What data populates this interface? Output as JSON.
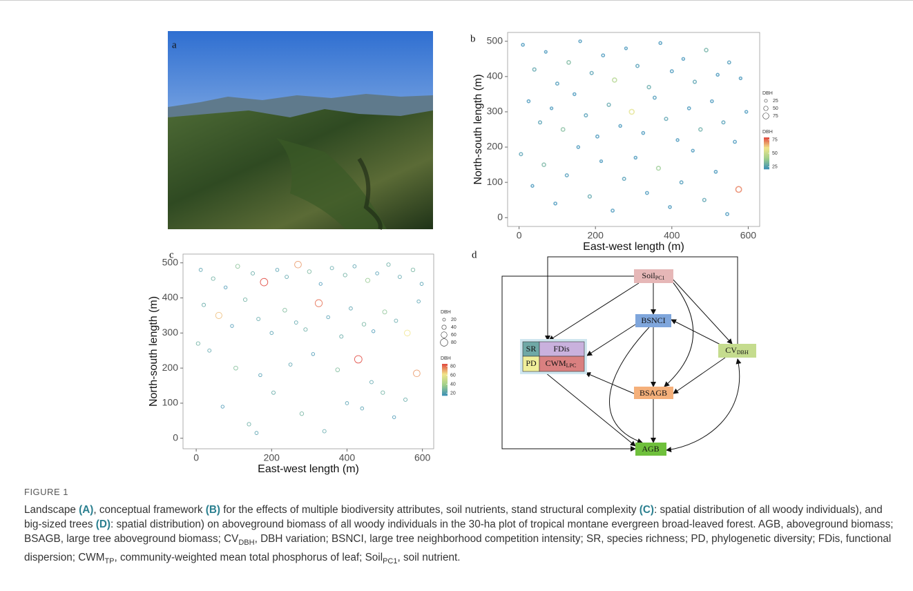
{
  "panel_labels": [
    "a",
    "b",
    "c",
    "d"
  ],
  "chart_data": [
    {
      "type": "scatter",
      "xlabel": "East-west length (m)",
      "ylabel": "North-south length (m)",
      "xlim": [
        -30,
        630
      ],
      "ylim": [
        -25,
        525
      ],
      "xticks": [
        0,
        200,
        400,
        600
      ],
      "yticks": [
        0,
        100,
        200,
        300,
        400,
        500
      ],
      "size_legend_title": "DBH",
      "size_ticks": [
        25,
        50,
        75
      ],
      "color_legend_title": "DBH",
      "color_ticks": [
        25,
        50,
        75
      ],
      "colorscale": [
        "#3a8fb7",
        "#9fcf8a",
        "#f1e58a",
        "#e0453c"
      ],
      "x": [
        10,
        40,
        70,
        100,
        130,
        160,
        190,
        220,
        250,
        280,
        310,
        340,
        370,
        400,
        430,
        460,
        490,
        520,
        550,
        580,
        25,
        55,
        85,
        115,
        145,
        175,
        205,
        235,
        265,
        295,
        325,
        355,
        385,
        415,
        445,
        475,
        505,
        535,
        565,
        595,
        5,
        35,
        65,
        95,
        125,
        155,
        185,
        215,
        245,
        275,
        305,
        335,
        365,
        395,
        425,
        455,
        485,
        515,
        545,
        575
      ],
      "y": [
        490,
        420,
        470,
        380,
        440,
        500,
        410,
        460,
        390,
        480,
        430,
        370,
        495,
        415,
        450,
        385,
        475,
        405,
        440,
        395,
        330,
        270,
        310,
        250,
        350,
        290,
        230,
        320,
        260,
        300,
        240,
        340,
        280,
        220,
        310,
        250,
        330,
        270,
        215,
        300,
        180,
        90,
        150,
        40,
        120,
        200,
        60,
        160,
        20,
        110,
        170,
        70,
        140,
        30,
        100,
        190,
        50,
        130,
        10,
        80
      ],
      "size": [
        22,
        30,
        18,
        26,
        35,
        20,
        28,
        24,
        45,
        19,
        27,
        31,
        23,
        25,
        21,
        29,
        33,
        22,
        26,
        20,
        24,
        28,
        19,
        36,
        22,
        27,
        25,
        30,
        21,
        55,
        23,
        26,
        29,
        20,
        24,
        32,
        22,
        27,
        25,
        21,
        28,
        20,
        34,
        23,
        26,
        22,
        30,
        19,
        25,
        27,
        21,
        24,
        40,
        22,
        26,
        20,
        29,
        23,
        25,
        70
      ]
    },
    {
      "type": "scatter",
      "xlabel": "East-west length (m)",
      "ylabel": "North-south length (m)",
      "xlim": [
        -35,
        630
      ],
      "ylim": [
        -30,
        525
      ],
      "xticks": [
        0,
        200,
        400,
        600
      ],
      "yticks": [
        0,
        100,
        200,
        300,
        400,
        500
      ],
      "size_legend_title": "DBH",
      "size_ticks": [
        20,
        40,
        60,
        80
      ],
      "color_legend_title": "DBH",
      "color_ticks": [
        20,
        40,
        60,
        80
      ],
      "colorscale": [
        "#3a8fb7",
        "#9fcf8a",
        "#f1e58a",
        "#e0453c"
      ],
      "x": [
        12,
        45,
        78,
        110,
        150,
        180,
        215,
        240,
        270,
        300,
        330,
        360,
        395,
        420,
        455,
        480,
        510,
        540,
        575,
        598,
        20,
        60,
        95,
        130,
        165,
        200,
        235,
        265,
        290,
        325,
        350,
        385,
        410,
        445,
        470,
        500,
        530,
        560,
        590,
        5,
        35,
        70,
        105,
        140,
        170,
        205,
        250,
        280,
        310,
        340,
        375,
        400,
        430,
        465,
        495,
        525,
        555,
        585,
        160,
        440
      ],
      "y": [
        480,
        455,
        430,
        490,
        470,
        445,
        480,
        460,
        495,
        475,
        440,
        485,
        465,
        490,
        450,
        470,
        495,
        460,
        480,
        440,
        380,
        350,
        320,
        395,
        340,
        300,
        365,
        330,
        310,
        385,
        345,
        290,
        370,
        325,
        305,
        360,
        335,
        300,
        390,
        270,
        250,
        90,
        200,
        40,
        180,
        130,
        210,
        70,
        240,
        20,
        195,
        100,
        225,
        160,
        130,
        60,
        110,
        185,
        15,
        85
      ],
      "size": [
        25,
        30,
        22,
        35,
        28,
        80,
        24,
        26,
        70,
        32,
        21,
        27,
        30,
        25,
        38,
        23,
        29,
        26,
        31,
        24,
        28,
        65,
        22,
        30,
        27,
        24,
        33,
        26,
        29,
        75,
        23,
        28,
        25,
        31,
        22,
        36,
        27,
        60,
        24,
        30,
        26,
        22,
        34,
        29,
        23,
        28,
        25,
        31,
        22,
        27,
        33,
        24,
        80,
        26,
        30,
        22,
        28,
        70,
        25,
        24
      ]
    }
  ],
  "diagram": {
    "nodes": [
      {
        "label": "Soil",
        "sub": "PC1"
      },
      {
        "label": "BSNCI"
      },
      {
        "label": "CV",
        "sub": "DBH"
      },
      {
        "label": "BSAGB"
      },
      {
        "label": "AGB"
      },
      {
        "label": "SR"
      },
      {
        "label": "FDis"
      },
      {
        "label": "PD"
      },
      {
        "label": "CWM",
        "sub": "LPC"
      }
    ]
  },
  "caption": {
    "label": "FIGURE 1",
    "segments": [
      {
        "text": "Landscape "
      },
      {
        "text": "(A)",
        "bold": true
      },
      {
        "text": ", conceptual framework "
      },
      {
        "text": "(B)",
        "bold": true
      },
      {
        "text": " for the effects of multiple biodiversity attributes, soil nutrients, stand structural complexity "
      },
      {
        "text": "(C)",
        "bold": true
      },
      {
        "text": ": spatial distribution of all woody individuals), and big-sized trees "
      },
      {
        "text": "(D)",
        "bold": true
      },
      {
        "text": ": spatial distribution) on aboveground biomass of all woody individuals in the 30-ha plot of tropical montane evergreen broad-leaved forest. AGB, aboveground biomass; BSAGB, large tree aboveground biomass; CV"
      },
      {
        "text": "DBH",
        "sub": true
      },
      {
        "text": ", DBH variation; BSNCI, large tree neighborhood competition intensity; SR, species richness; PD, phylogenetic diversity; FDis, functional dispersion; CWM"
      },
      {
        "text": "TP",
        "sub": true
      },
      {
        "text": ", community-weighted mean total phosphorus of leaf; Soil"
      },
      {
        "text": "PC1",
        "sub": true
      },
      {
        "text": ", soil nutrient."
      }
    ]
  }
}
